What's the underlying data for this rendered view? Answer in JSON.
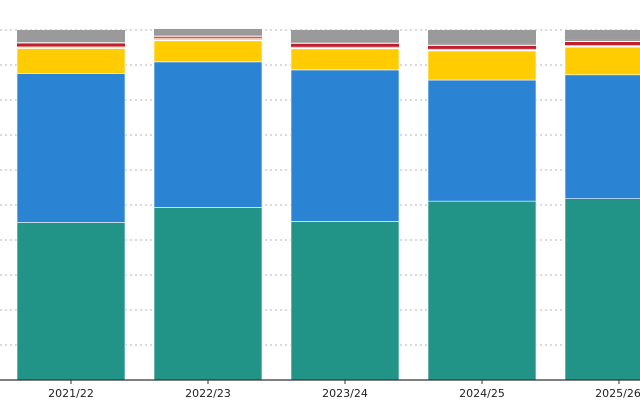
{
  "chart_data": {
    "type": "bar",
    "stacked": true,
    "normalized": true,
    "categories": [
      "2021/22",
      "2022/23",
      "2023/24",
      "2024/25",
      "2025/26"
    ],
    "series": [
      {
        "color": "#229487",
        "values": [
          45.0,
          49.3,
          45.3,
          51.1,
          51.8
        ]
      },
      {
        "color": "#2a84d3",
        "values": [
          42.6,
          41.6,
          43.3,
          34.6,
          35.4
        ]
      },
      {
        "color": "#fecc00",
        "values": [
          7.1,
          6.0,
          6.0,
          8.3,
          7.9
        ]
      },
      {
        "color": "#ffffff",
        "values": [
          0.3,
          0.3,
          0.3,
          0.3,
          0.3
        ]
      },
      {
        "color": "#f2c9a8",
        "values": [
          0.3,
          0.6,
          0.3,
          0.3,
          0.3
        ]
      },
      {
        "color": "#c11e2e",
        "values": [
          0.9,
          0.3,
          0.9,
          0.9,
          0.9
        ]
      },
      {
        "color": "#ffffff",
        "values": [
          0.3,
          0.3,
          0.3,
          0.3,
          0.3
        ]
      },
      {
        "color": "#888888",
        "values": [
          0.3,
          0.3,
          0.3,
          0.3,
          0.3
        ]
      },
      {
        "color": "#9a9a9a",
        "values": [
          3.2,
          1.6,
          3.3,
          3.9,
          2.8
        ]
      }
    ],
    "ylim": [
      0,
      100
    ],
    "grid": true
  }
}
